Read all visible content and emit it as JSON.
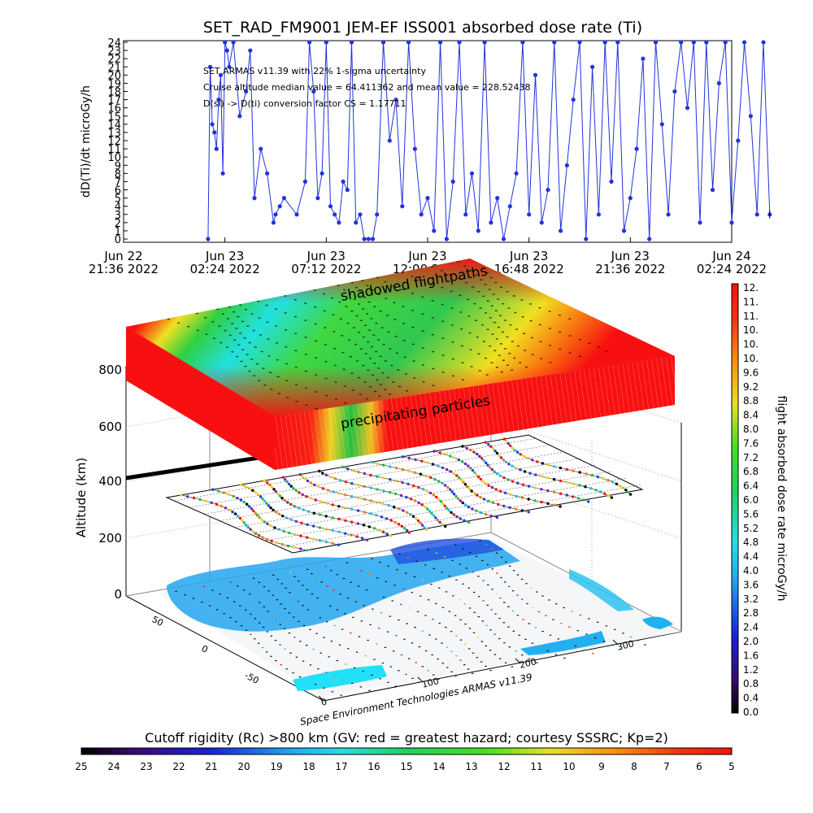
{
  "colors": {
    "series": "#2233dd",
    "shadow_text": "#222222"
  },
  "chart_data": [
    {
      "type": "line",
      "title": "SET_RAD_FM9001  JEM-EF ISS001 absorbed dose rate (Ti)",
      "ylabel": "dD(Ti)/dt microGy/h",
      "ylim": [
        0,
        24
      ],
      "yticks": [
        0,
        1,
        2,
        3,
        4,
        5,
        6,
        7,
        8,
        9,
        10,
        11,
        12,
        13,
        14,
        15,
        16,
        17,
        18,
        19,
        20,
        21,
        22,
        23,
        24
      ],
      "xticks": [
        {
          "top": "Jun 22",
          "bottom": "21:36 2022"
        },
        {
          "top": "Jun 23",
          "bottom": "02:24 2022"
        },
        {
          "top": "Jun 23",
          "bottom": "07:12 2022"
        },
        {
          "top": "Jun 23",
          "bottom": "12:00 2022"
        },
        {
          "top": "Jun 23",
          "bottom": "16:48 2022"
        },
        {
          "top": "Jun 23",
          "bottom": "21:36 2022"
        },
        {
          "top": "Jun 24",
          "bottom": "02:24 2022"
        }
      ],
      "annotations": [
        "SET ARMAS v11.39 with 22% 1-sigma uncertainty",
        "Cruise altitude median value = 64.411362 and mean value = 228.52438",
        "D(si) -> D(ti) conversion factor CS = 1.17711"
      ],
      "x_hours": [
        4.0,
        4.1,
        4.2,
        4.3,
        4.4,
        4.5,
        4.6,
        4.7,
        4.8,
        4.9,
        5.0,
        5.2,
        5.5,
        5.8,
        6.0,
        6.2,
        6.5,
        6.8,
        7.1,
        7.2,
        7.4,
        7.6,
        8.2,
        8.6,
        8.8,
        9.0,
        9.2,
        9.4,
        9.6,
        9.8,
        10.0,
        10.2,
        10.4,
        10.6,
        10.8,
        11.0,
        11.2,
        11.4,
        11.6,
        11.8,
        12.0,
        12.3,
        12.6,
        12.9,
        13.2,
        13.5,
        13.8,
        14.1,
        14.4,
        14.7,
        15.0,
        15.3,
        15.6,
        15.9,
        16.2,
        16.5,
        16.8,
        17.1,
        17.4,
        17.7,
        18.0,
        18.3,
        18.6,
        18.9,
        19.2,
        19.5,
        19.8,
        20.1,
        20.4,
        20.7,
        21.0,
        21.3,
        21.6,
        21.9,
        22.2,
        22.5,
        22.8,
        23.1,
        23.4,
        23.7,
        24.0,
        24.3,
        24.6,
        24.9,
        25.2,
        25.5,
        25.8,
        26.1,
        26.4,
        26.7,
        27.0,
        27.3,
        27.6,
        27.9,
        28.2,
        28.5,
        28.8,
        29.1,
        29.4,
        29.7,
        30.0,
        30.3,
        30.6
      ],
      "y_values": [
        0,
        21,
        14,
        13,
        11,
        17,
        20,
        8,
        24,
        23,
        21,
        24,
        15,
        18,
        23,
        5,
        11,
        8,
        2,
        3,
        4,
        5,
        3,
        7,
        24,
        18,
        5,
        8,
        24,
        4,
        3,
        2,
        7,
        6,
        24,
        2,
        3,
        0,
        0,
        0,
        3,
        24,
        12,
        17,
        4,
        24,
        11,
        3,
        5,
        1,
        24,
        0,
        7,
        24,
        3,
        8,
        1,
        24,
        2,
        5,
        0,
        4,
        8,
        24,
        3,
        20,
        2,
        6,
        24,
        1,
        9,
        17,
        24,
        0,
        21,
        3,
        24,
        7,
        24,
        1,
        5,
        11,
        22,
        0,
        24,
        14,
        3,
        18,
        24,
        16,
        24,
        2,
        24,
        6,
        19,
        24,
        2,
        12,
        24,
        15,
        3,
        24,
        3
      ],
      "y_error": 0.5
    },
    {
      "type": "heatmap",
      "ylabel": "Altitude (km)",
      "yticks": [
        0,
        200,
        400,
        600,
        800
      ],
      "map_x_ticks": [
        0,
        100,
        200,
        300
      ],
      "map_y_ticks": [
        -50,
        0,
        50
      ],
      "annotations": [
        "shadowed flightpaths",
        "precipitating particles"
      ],
      "credit": "Space Environment Technologies ARMAS v11.39",
      "colorbar_label": "flight absorbed dose rate microGy/h",
      "colorbar_ticks": [
        "0.0",
        "0.4",
        "0.8",
        "1.2",
        "1.6",
        "2.0",
        "2.4",
        "2.8",
        "3.2",
        "3.6",
        "4.0",
        "4.4",
        "4.8",
        "5.2",
        "5.6",
        "6.0",
        "6.4",
        "6.8",
        "7.2",
        "7.6",
        "8.0",
        "8.4",
        "8.8",
        "9.2",
        "9.6",
        "10.",
        "10.",
        "10.",
        "11.",
        "11.",
        "12."
      ],
      "bottom_bar_label": "Cutoff rigidity (Rc) >800 km (GV: red = greatest hazard; courtesy SSSRC; Kp=2)",
      "bottom_bar_ticks": [
        "25",
        "24",
        "23",
        "22",
        "21",
        "20",
        "19",
        "18",
        "17",
        "16",
        "15",
        "14",
        "13",
        "12",
        "11",
        "10",
        "9",
        "8",
        "7",
        "6",
        "5"
      ]
    }
  ]
}
